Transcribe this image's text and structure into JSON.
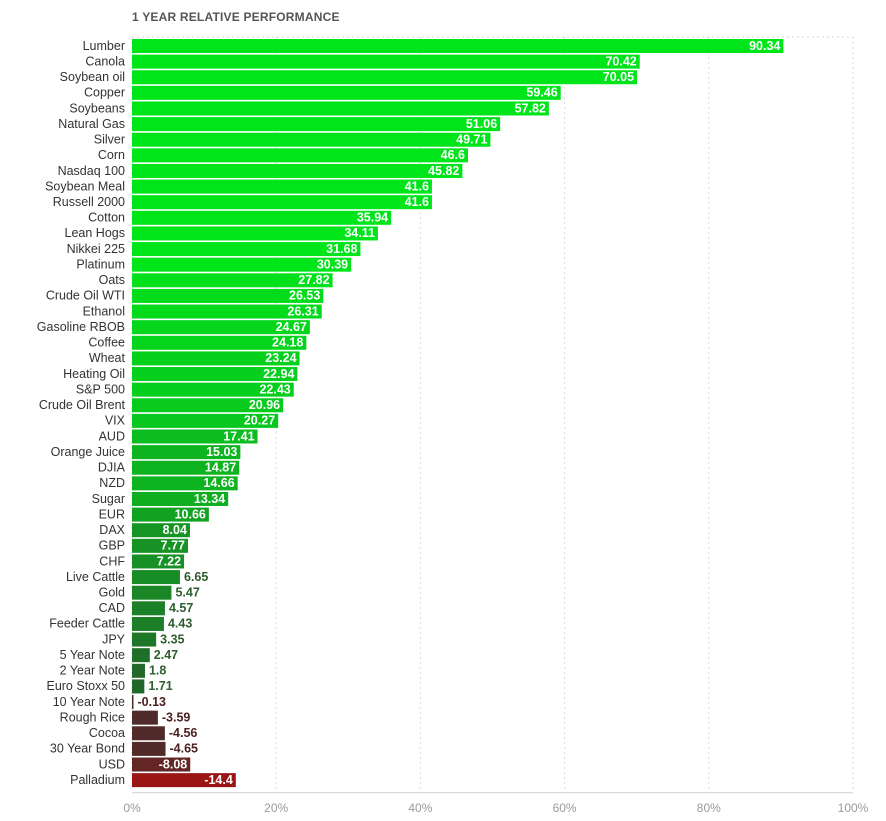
{
  "chart_data": {
    "type": "bar",
    "orientation": "horizontal",
    "title": "1 YEAR RELATIVE PERFORMANCE",
    "xlim": [
      0,
      100
    ],
    "x_ticks": [
      "0%",
      "20%",
      "40%",
      "60%",
      "80%",
      "100%"
    ],
    "grid": true,
    "categories": [
      "Lumber",
      "Canola",
      "Soybean oil",
      "Copper",
      "Soybeans",
      "Natural Gas",
      "Silver",
      "Corn",
      "Nasdaq 100",
      "Soybean Meal",
      "Russell 2000",
      "Cotton",
      "Lean Hogs",
      "Nikkei 225",
      "Platinum",
      "Oats",
      "Crude Oil WTI",
      "Ethanol",
      "Gasoline RBOB",
      "Coffee",
      "Wheat",
      "Heating Oil",
      "S&P 500",
      "Crude Oil Brent",
      "VIX",
      "AUD",
      "Orange Juice",
      "DJIA",
      "NZD",
      "Sugar",
      "EUR",
      "DAX",
      "GBP",
      "CHF",
      "Live Cattle",
      "Gold",
      "CAD",
      "Feeder Cattle",
      "JPY",
      "5 Year Note",
      "2 Year Note",
      "Euro Stoxx 50",
      "10 Year Note",
      "Rough Rice",
      "Cocoa",
      "30 Year Bond",
      "USD",
      "Palladium"
    ],
    "values": [
      90.34,
      70.42,
      70.05,
      59.46,
      57.82,
      51.06,
      49.71,
      46.6,
      45.82,
      41.6,
      41.6,
      35.94,
      34.11,
      31.68,
      30.39,
      27.82,
      26.53,
      26.31,
      24.67,
      24.18,
      23.24,
      22.94,
      22.43,
      20.96,
      20.27,
      17.41,
      15.03,
      14.87,
      14.66,
      13.34,
      10.66,
      8.04,
      7.77,
      7.22,
      6.65,
      5.47,
      4.57,
      4.43,
      3.35,
      2.47,
      1.8,
      1.71,
      -0.13,
      -3.59,
      -4.56,
      -4.65,
      -8.08,
      -14.4
    ],
    "value_labels": [
      "90.34",
      "70.42",
      "70.05",
      "59.46",
      "57.82",
      "51.06",
      "49.71",
      "46.6",
      "45.82",
      "41.6",
      "41.6",
      "35.94",
      "34.11",
      "31.68",
      "30.39",
      "27.82",
      "26.53",
      "26.31",
      "24.67",
      "24.18",
      "23.24",
      "22.94",
      "22.43",
      "20.96",
      "20.27",
      "17.41",
      "15.03",
      "14.87",
      "14.66",
      "13.34",
      "10.66",
      "8.04",
      "7.77",
      "7.22",
      "6.65",
      "5.47",
      "4.57",
      "4.43",
      "3.35",
      "2.47",
      "1.8",
      "1.71",
      "-0.13",
      "-3.59",
      "-4.56",
      "-4.65",
      "-8.08",
      "-14.4"
    ],
    "colors": {
      "strong_positive": "#00e51a",
      "weak_positive": "#2d3f2f",
      "weak_negative": "#4a2c2c",
      "strong_negative": "#9b1515",
      "label_dark_positive": "#2e5d2e",
      "label_dark_negative": "#4a2020",
      "label_light": "#ffffff",
      "grid": "#d9d9d9",
      "axis": "#cfcfcf"
    }
  }
}
